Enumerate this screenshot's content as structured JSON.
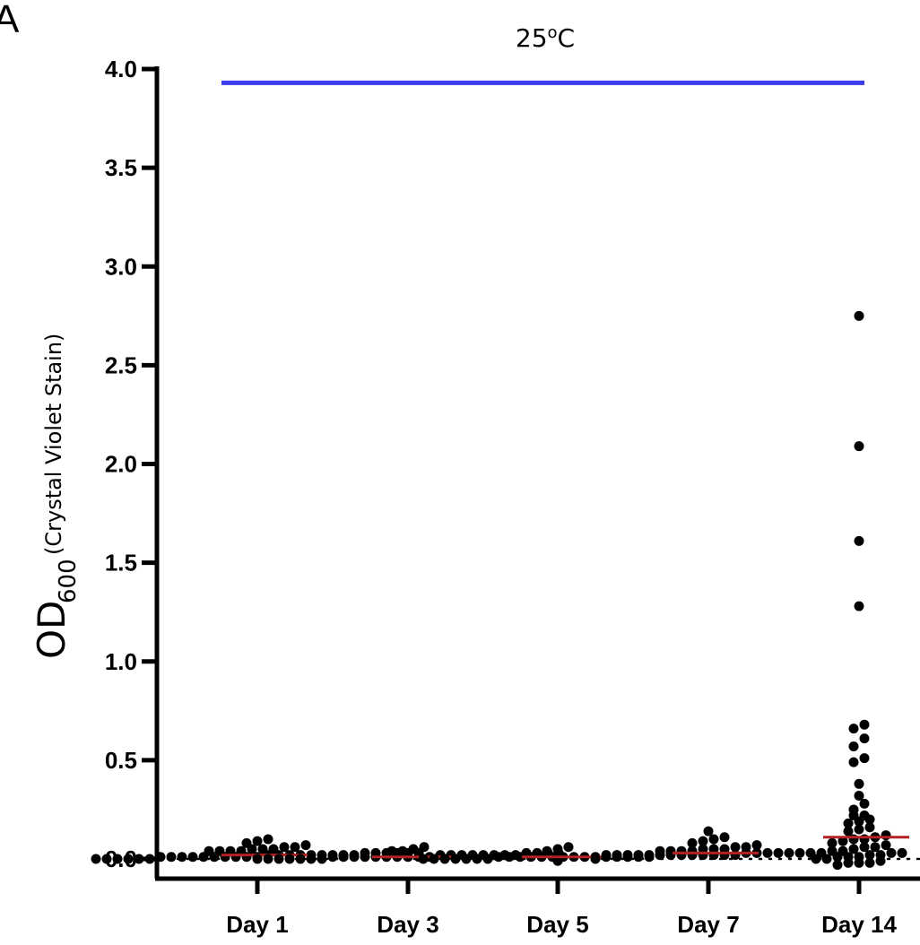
{
  "panel_label": "A",
  "chart_data": {
    "type": "scatter",
    "title_base": "25",
    "title_sup": "o",
    "title_unit": "C",
    "ylabel_main": "OD",
    "ylabel_sub": "600",
    "ylabel_note": "(Crystal Violet Stain)",
    "xlabel": "",
    "ylim": [
      0,
      4.0
    ],
    "yticks": [
      "0.0",
      "0.5",
      "1.0",
      "1.5",
      "2.0",
      "2.5",
      "3.0",
      "3.5",
      "4.0"
    ],
    "reference_line": {
      "y": 3.93,
      "color": "#3b3bef",
      "x_start": "Day 1",
      "x_end": "Day 14"
    },
    "baseline_dotted_y": 0.0,
    "median_color": "#b22222",
    "point_color": "#000000",
    "categories": [
      "Day 1",
      "Day 3",
      "Day 5",
      "Day 7",
      "Day 14"
    ],
    "series": [
      {
        "category": "Day 1",
        "median": 0.02,
        "values": [
          0.0,
          0.0,
          0.0,
          0.0,
          0.0,
          0.0,
          0.01,
          0.01,
          0.01,
          0.01,
          0.01,
          0.01,
          0.01,
          0.01,
          0.01,
          0.01,
          0.02,
          0.02,
          0.02,
          0.02,
          0.02,
          0.02,
          0.02,
          0.02,
          0.02,
          0.03,
          0.03,
          0.03,
          0.03,
          0.03,
          0.03,
          0.04,
          0.04,
          0.04,
          0.04,
          0.05,
          0.05,
          0.05,
          0.06,
          0.06,
          0.07,
          0.08,
          0.09,
          0.1
        ]
      },
      {
        "category": "Day 3",
        "median": 0.01,
        "values": [
          0.0,
          0.0,
          0.0,
          0.0,
          0.0,
          0.0,
          0.0,
          0.01,
          0.01,
          0.01,
          0.01,
          0.01,
          0.01,
          0.01,
          0.01,
          0.01,
          0.01,
          0.02,
          0.02,
          0.02,
          0.02,
          0.02,
          0.02,
          0.02,
          0.02,
          0.03,
          0.03,
          0.03,
          0.03,
          0.04,
          0.04,
          0.05,
          0.06
        ]
      },
      {
        "category": "Day 5",
        "median": 0.01,
        "values": [
          -0.01,
          0.0,
          0.0,
          0.0,
          0.0,
          0.0,
          0.0,
          0.0,
          0.01,
          0.01,
          0.01,
          0.01,
          0.01,
          0.01,
          0.01,
          0.01,
          0.01,
          0.01,
          0.02,
          0.02,
          0.02,
          0.02,
          0.02,
          0.02,
          0.03,
          0.03,
          0.03,
          0.04,
          0.05,
          0.06
        ]
      },
      {
        "category": "Day 7",
        "median": 0.03,
        "values": [
          0.0,
          0.01,
          0.01,
          0.01,
          0.01,
          0.01,
          0.02,
          0.02,
          0.02,
          0.02,
          0.02,
          0.02,
          0.02,
          0.02,
          0.03,
          0.03,
          0.03,
          0.03,
          0.03,
          0.03,
          0.03,
          0.03,
          0.04,
          0.04,
          0.04,
          0.04,
          0.05,
          0.05,
          0.05,
          0.06,
          0.06,
          0.07,
          0.08,
          0.09,
          0.1,
          0.11,
          0.14
        ]
      },
      {
        "category": "Day 14",
        "median": 0.11,
        "values": [
          2.75,
          2.09,
          1.61,
          1.28,
          0.68,
          0.66,
          0.61,
          0.57,
          0.51,
          0.49,
          0.38,
          0.32,
          0.28,
          0.25,
          0.22,
          0.22,
          0.2,
          0.19,
          0.18,
          0.16,
          0.15,
          0.14,
          0.12,
          0.11,
          0.1,
          0.1,
          0.09,
          0.08,
          0.07,
          0.06,
          0.06,
          0.05,
          0.04,
          0.04,
          0.03,
          0.03,
          0.02,
          0.02,
          0.01,
          0.01,
          0.01,
          0.0,
          0.0,
          -0.01,
          -0.02,
          -0.02,
          -0.02,
          -0.03
        ]
      }
    ]
  }
}
